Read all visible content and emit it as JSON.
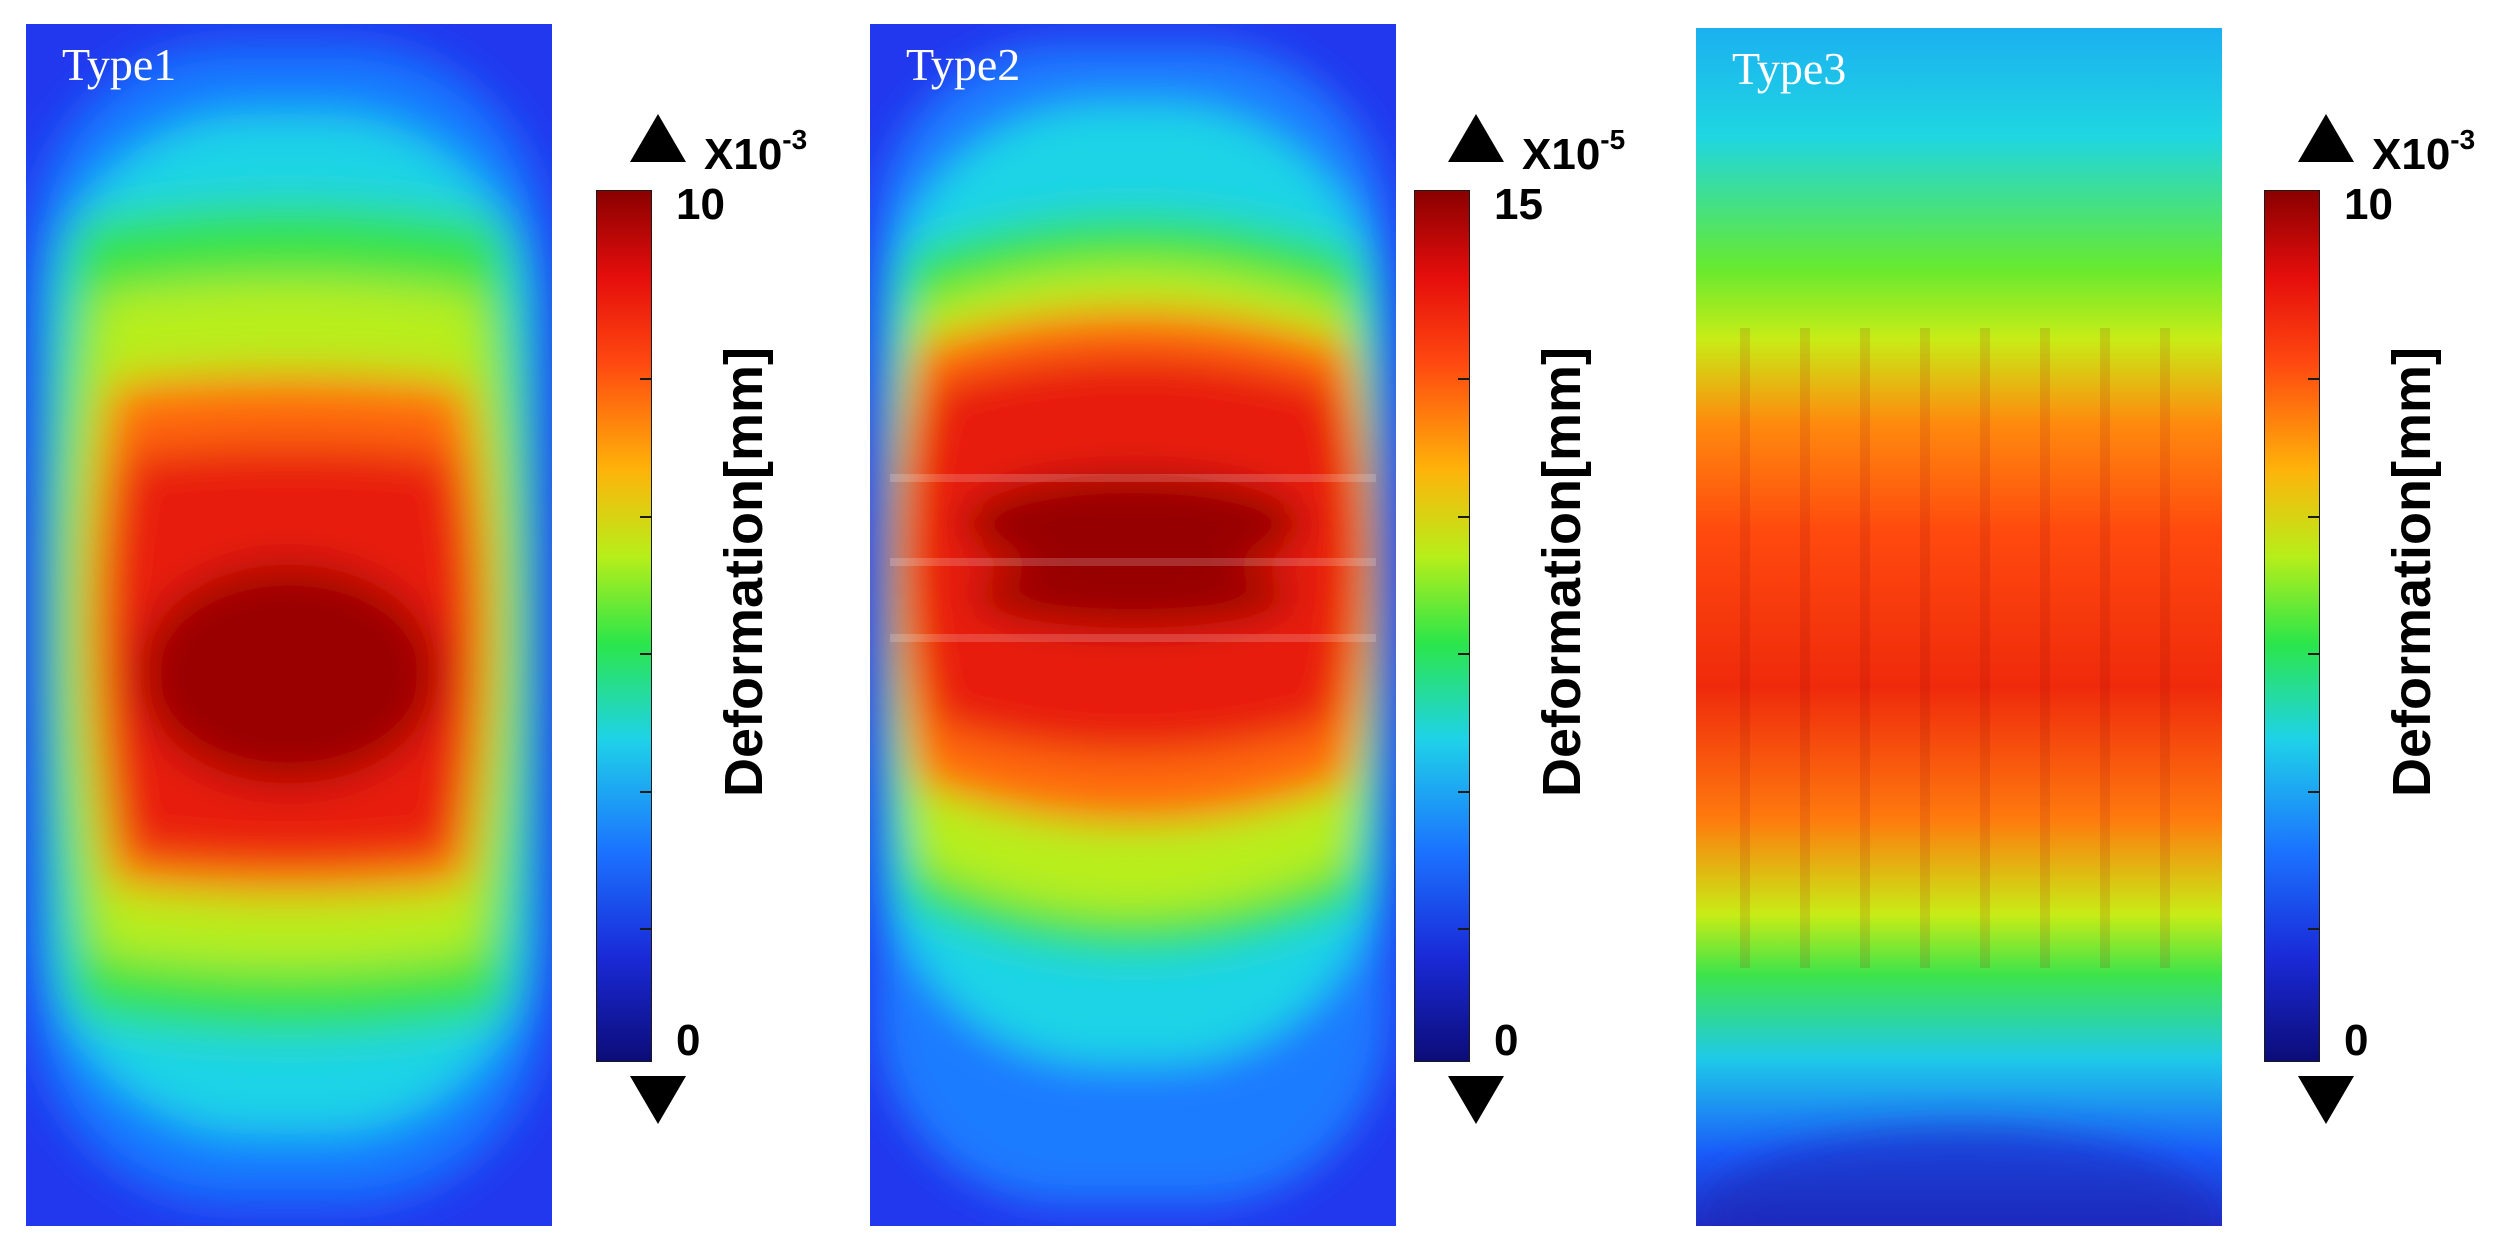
{
  "chart_data": [
    {
      "type": "heatmap",
      "title": "Type1",
      "colorbar_label": "Deformation[mm]",
      "multiplier_base": "X10",
      "multiplier_exponent": "-3",
      "range_min": "0",
      "range_max": "10",
      "vmin": 0,
      "vmax": 10,
      "field": "elliptical barrel-shaped peak at center, decreasing to edges",
      "peak_value": 10,
      "colormap": "jet"
    },
    {
      "type": "heatmap",
      "title": "Type2",
      "colorbar_label": "Deformation[mm]",
      "multiplier_base": "X10",
      "multiplier_exponent": "-5",
      "range_min": "0",
      "range_max": "15",
      "vmin": 0,
      "vmax": 15,
      "field": "rounded peak in upper-middle with horizontal banding",
      "peak_value": 15,
      "colormap": "jet"
    },
    {
      "type": "heatmap",
      "title": "Type3",
      "colorbar_label": "Deformation[mm]",
      "multiplier_base": "X10",
      "multiplier_exponent": "-3",
      "range_min": "0",
      "range_max": "10",
      "vmin": 0,
      "vmax": 10,
      "field": "horizontal band across full width with vertical striations",
      "peak_value": 9,
      "colormap": "jet"
    }
  ],
  "colors": {
    "dark_red": "#8a0000",
    "red": "#e8120c",
    "orange": "#ff7a10",
    "yellow_green": "#b4ee1c",
    "green": "#2fe24c",
    "cyan": "#1fd8e6",
    "light_blue": "#1aa0ff",
    "blue": "#1f3cf0",
    "dark_blue": "#0f1a9a"
  }
}
